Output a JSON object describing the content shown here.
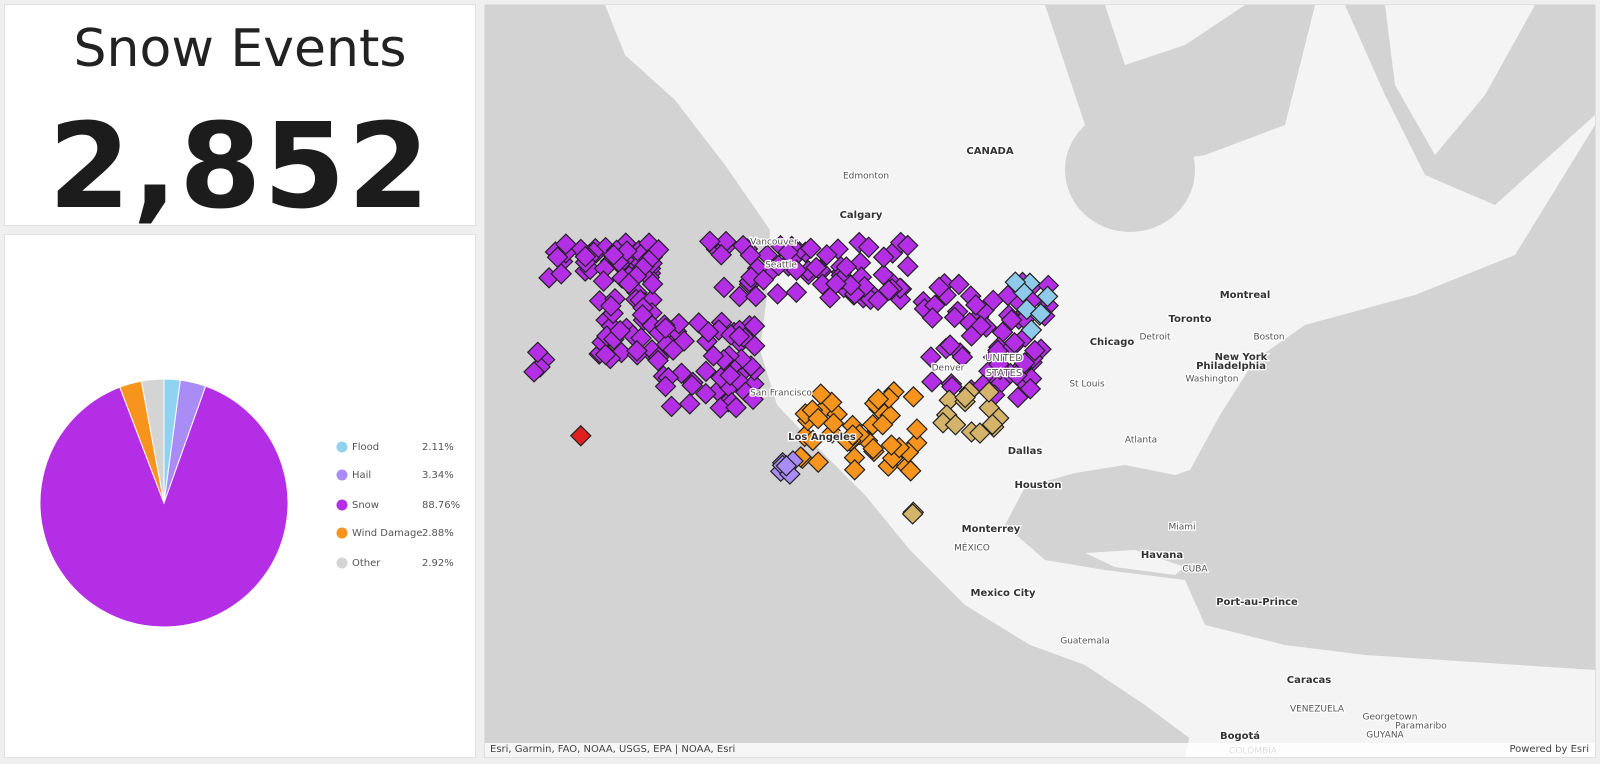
{
  "indicator": {
    "title": "Snow Events",
    "value": "2,852"
  },
  "chart_data": {
    "type": "pie",
    "categories": [
      "Flood",
      "Hail",
      "Snow",
      "Wind Damage",
      "Other"
    ],
    "values": [
      2.11,
      3.34,
      88.76,
      2.88,
      2.92
    ],
    "value_labels": [
      "2.11%",
      "3.34%",
      "88.76%",
      "2.88%",
      "2.92%"
    ],
    "colors": [
      "#8fd3f0",
      "#a98cf5",
      "#b42ee6",
      "#f7941d",
      "#d4d4d4"
    ]
  },
  "map": {
    "labels": [
      "CANADA",
      "Edmonton",
      "Calgary",
      "Vancouver",
      "Seattle",
      "San Francisco",
      "Los Angeles",
      "UNITED",
      "STATES",
      "Denver",
      "Chicago",
      "Detroit",
      "Toronto",
      "Montreal",
      "Boston",
      "New York",
      "Philadelphia",
      "Washington",
      "St Louis",
      "Dallas",
      "Atlanta",
      "Houston",
      "Miami",
      "Monterrey",
      "MÉXICO",
      "Mexico City",
      "Havana",
      "CUBA",
      "Port-au-Prince",
      "Guatemala",
      "Caracas",
      "VENEZUELA",
      "Georgetown",
      "Paramaribo",
      "GUYANA",
      "Bogotá",
      "COLOMBIA"
    ],
    "attribution": "Esri, Garmin, FAO, NOAA, USGS, EPA | NOAA, Esri",
    "powered_by": "Powered by Esri"
  }
}
